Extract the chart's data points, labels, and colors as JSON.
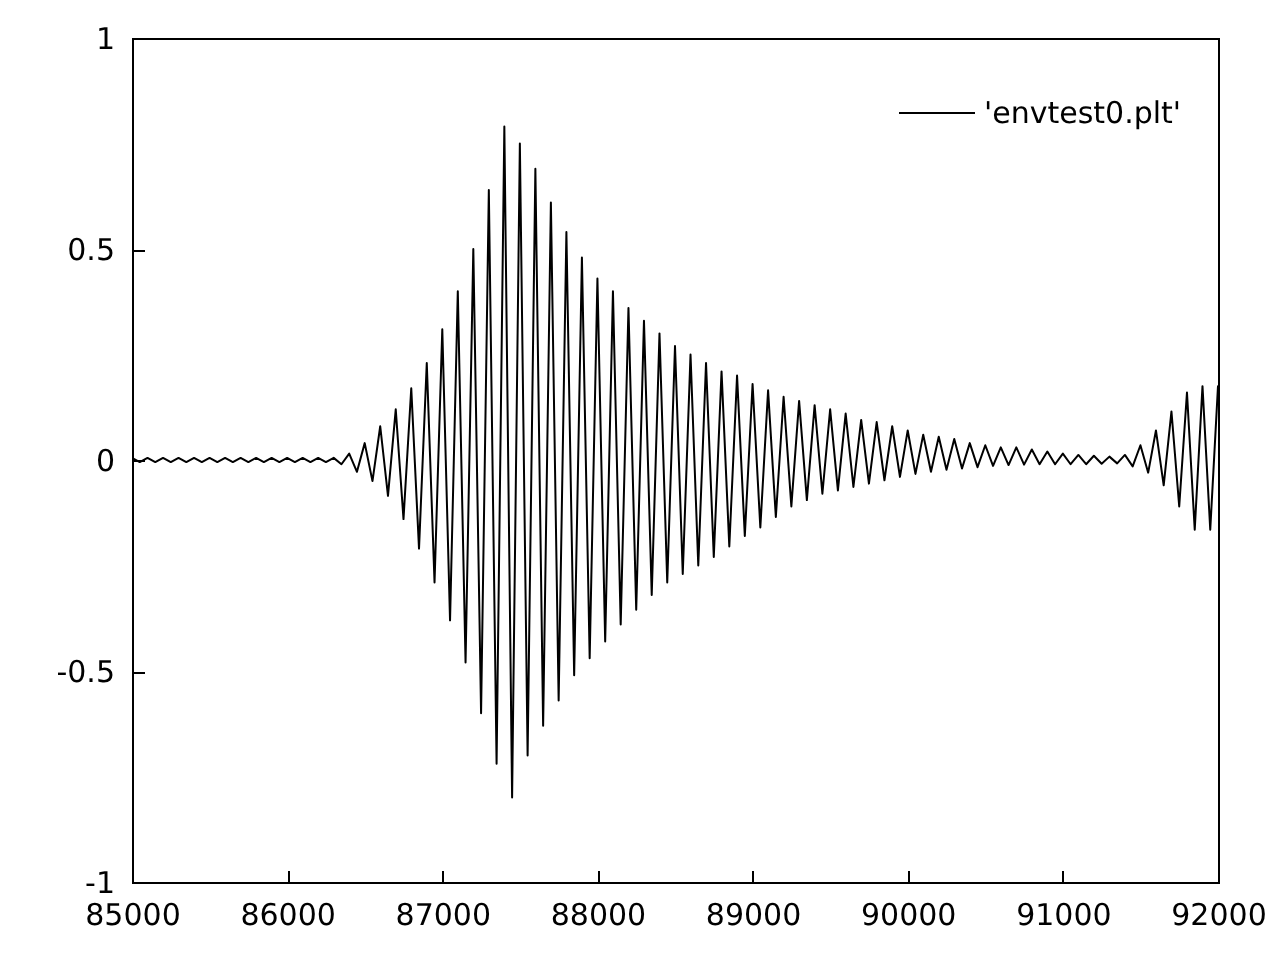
{
  "chart_data": {
    "type": "line",
    "x": [
      85000,
      85050,
      85100,
      85150,
      85200,
      85250,
      85300,
      85350,
      85400,
      85450,
      85500,
      85550,
      85600,
      85650,
      85700,
      85750,
      85800,
      85850,
      85900,
      85950,
      86000,
      86050,
      86100,
      86150,
      86200,
      86250,
      86300,
      86350,
      86400,
      86450,
      86500,
      86550,
      86600,
      86650,
      86700,
      86750,
      86800,
      86850,
      86900,
      86950,
      87000,
      87050,
      87100,
      87150,
      87200,
      87250,
      87300,
      87350,
      87400,
      87450,
      87500,
      87550,
      87600,
      87650,
      87700,
      87750,
      87800,
      87850,
      87900,
      87950,
      88000,
      88050,
      88100,
      88150,
      88200,
      88250,
      88300,
      88350,
      88400,
      88450,
      88500,
      88550,
      88600,
      88650,
      88700,
      88750,
      88800,
      88850,
      88900,
      88950,
      89000,
      89050,
      89100,
      89150,
      89200,
      89250,
      89300,
      89350,
      89400,
      89450,
      89500,
      89550,
      89600,
      89650,
      89700,
      89750,
      89800,
      89850,
      89900,
      89950,
      90000,
      90050,
      90100,
      90150,
      90200,
      90250,
      90300,
      90350,
      90400,
      90450,
      90500,
      90550,
      90600,
      90650,
      90700,
      90750,
      90800,
      90850,
      90900,
      90950,
      91000,
      91050,
      91100,
      91150,
      91200,
      91250,
      91300,
      91350,
      91400,
      91450,
      91500,
      91550,
      91600,
      91650,
      91700,
      91750,
      91800,
      91850,
      91900,
      91950,
      92000
    ],
    "series": [
      {
        "name": "'envtest0.plt'",
        "color": "#000000",
        "values": [
          0.005,
          -0.005,
          0.005,
          -0.005,
          0.005,
          -0.005,
          0.005,
          -0.005,
          0.005,
          -0.005,
          0.005,
          -0.005,
          0.005,
          -0.005,
          0.005,
          -0.005,
          0.005,
          -0.005,
          0.005,
          -0.005,
          0.005,
          -0.005,
          0.005,
          -0.005,
          0.005,
          -0.005,
          0.005,
          -0.01,
          0.015,
          -0.028,
          0.04,
          -0.05,
          0.08,
          -0.085,
          0.12,
          -0.14,
          0.17,
          -0.21,
          0.23,
          -0.29,
          0.31,
          -0.38,
          0.4,
          -0.48,
          0.5,
          -0.6,
          0.64,
          -0.72,
          0.79,
          -0.8,
          0.75,
          -0.7,
          0.69,
          -0.63,
          0.61,
          -0.57,
          0.54,
          -0.51,
          0.48,
          -0.47,
          0.43,
          -0.43,
          0.4,
          -0.39,
          0.36,
          -0.355,
          0.33,
          -0.32,
          0.3,
          -0.29,
          0.27,
          -0.27,
          0.25,
          -0.25,
          0.23,
          -0.23,
          0.21,
          -0.205,
          0.2,
          -0.18,
          0.18,
          -0.16,
          0.165,
          -0.135,
          0.15,
          -0.11,
          0.14,
          -0.095,
          0.13,
          -0.08,
          0.12,
          -0.072,
          0.11,
          -0.064,
          0.095,
          -0.056,
          0.09,
          -0.048,
          0.08,
          -0.04,
          0.07,
          -0.033,
          0.06,
          -0.028,
          0.055,
          -0.023,
          0.05,
          -0.02,
          0.04,
          -0.017,
          0.035,
          -0.014,
          0.03,
          -0.012,
          0.03,
          -0.011,
          0.025,
          -0.01,
          0.02,
          -0.01,
          0.015,
          -0.01,
          0.012,
          -0.01,
          0.01,
          -0.009,
          0.008,
          -0.008,
          0.012,
          -0.015,
          0.035,
          -0.03,
          0.07,
          -0.06,
          0.115,
          -0.11,
          0.16,
          -0.165,
          0.175,
          -0.165,
          0.175
        ]
      }
    ],
    "xlim": [
      85000,
      92000
    ],
    "ylim": [
      -1,
      1
    ],
    "xticks": [
      85000,
      86000,
      87000,
      88000,
      89000,
      90000,
      91000,
      92000
    ],
    "yticks": [
      -1,
      -0.5,
      0,
      0.5,
      1
    ],
    "grid": false,
    "legend": "top right",
    "marker": "none",
    "line_style": "solid"
  }
}
